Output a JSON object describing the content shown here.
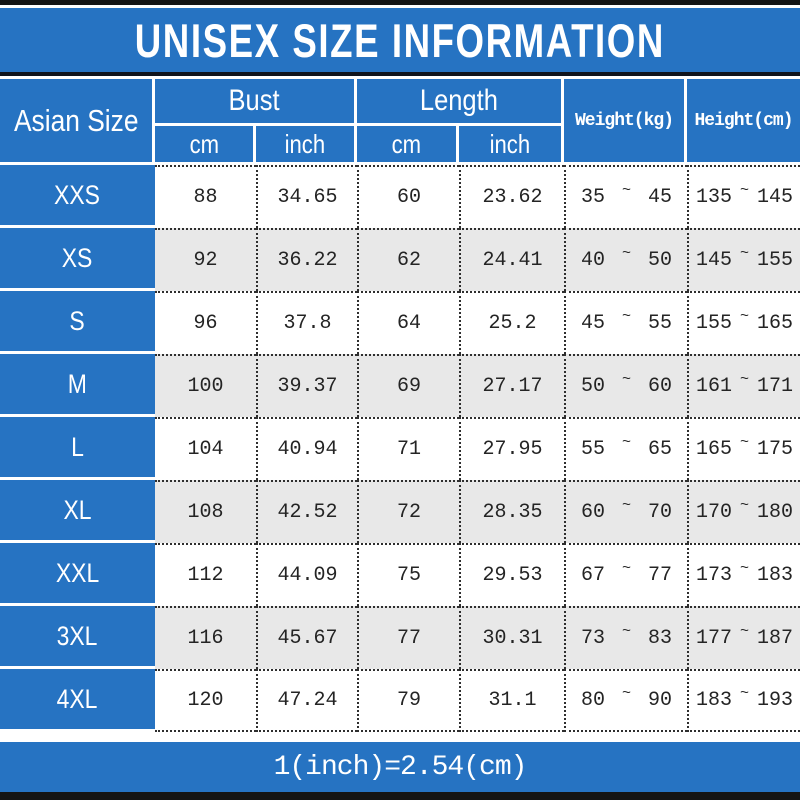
{
  "title": "UNISEX SIZE INFORMATION",
  "header": {
    "corner": "Asian Size",
    "bust": {
      "label": "Bust",
      "sub_cm": "cm",
      "sub_inch": "inch"
    },
    "length": {
      "label": "Length",
      "sub_cm": "cm",
      "sub_inch": "inch"
    },
    "weight": "Weight(kg)",
    "height": "Height(cm)"
  },
  "tilde": "~",
  "rows": [
    {
      "size": "XXS",
      "bust_cm": "88",
      "bust_inch": "34.65",
      "length_cm": "60",
      "length_inch": "23.62",
      "weight_min": "35",
      "weight_max": "45",
      "height_min": "135",
      "height_max": "145"
    },
    {
      "size": "XS",
      "bust_cm": "92",
      "bust_inch": "36.22",
      "length_cm": "62",
      "length_inch": "24.41",
      "weight_min": "40",
      "weight_max": "50",
      "height_min": "145",
      "height_max": "155"
    },
    {
      "size": "S",
      "bust_cm": "96",
      "bust_inch": "37.8",
      "length_cm": "64",
      "length_inch": "25.2",
      "weight_min": "45",
      "weight_max": "55",
      "height_min": "155",
      "height_max": "165"
    },
    {
      "size": "M",
      "bust_cm": "100",
      "bust_inch": "39.37",
      "length_cm": "69",
      "length_inch": "27.17",
      "weight_min": "50",
      "weight_max": "60",
      "height_min": "161",
      "height_max": "171"
    },
    {
      "size": "L",
      "bust_cm": "104",
      "bust_inch": "40.94",
      "length_cm": "71",
      "length_inch": "27.95",
      "weight_min": "55",
      "weight_max": "65",
      "height_min": "165",
      "height_max": "175"
    },
    {
      "size": "XL",
      "bust_cm": "108",
      "bust_inch": "42.52",
      "length_cm": "72",
      "length_inch": "28.35",
      "weight_min": "60",
      "weight_max": "70",
      "height_min": "170",
      "height_max": "180"
    },
    {
      "size": "XXL",
      "bust_cm": "112",
      "bust_inch": "44.09",
      "length_cm": "75",
      "length_inch": "29.53",
      "weight_min": "67",
      "weight_max": "77",
      "height_min": "173",
      "height_max": "183"
    },
    {
      "size": "3XL",
      "bust_cm": "116",
      "bust_inch": "45.67",
      "length_cm": "77",
      "length_inch": "30.31",
      "weight_min": "73",
      "weight_max": "83",
      "height_min": "177",
      "height_max": "187"
    },
    {
      "size": "4XL",
      "bust_cm": "120",
      "bust_inch": "47.24",
      "length_cm": "79",
      "length_inch": "31.1",
      "weight_min": "80",
      "weight_max": "90",
      "height_min": "183",
      "height_max": "193"
    }
  ],
  "footer_note": "1(inch)=2.54(cm)",
  "colors": {
    "blue": "#2673c2",
    "row_alt": "#e8e8e8",
    "frame_bar": "#141414"
  }
}
